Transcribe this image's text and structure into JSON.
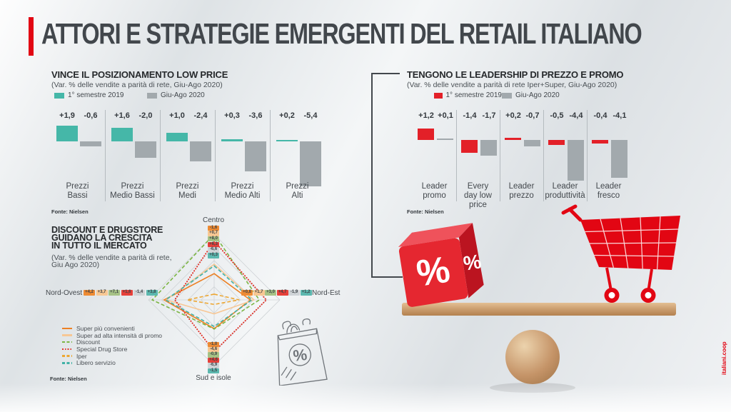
{
  "page": {
    "title": "ATTORI E STRATEGIE EMERGENTI DEL RETAIL ITALIANO",
    "credit": "italiani.coop"
  },
  "illustration": {
    "percent": "%"
  },
  "charts": [
    {
      "id": "low_price",
      "type": "bar",
      "title": "VINCE IL POSIZIONAMENTO LOW PRICE",
      "subtitle": "(Var. % delle vendite a parità di rete, Giu-Ago 2020)",
      "legend": [
        {
          "label": "1° semestre 2019",
          "color": "#45b7a8"
        },
        {
          "label": "Giu-Ago 2020",
          "color": "#a2a9ad"
        }
      ],
      "groups": [
        {
          "category": [
            "Prezzi",
            "Bassi"
          ],
          "labels": [
            "+1,9",
            "-0,6"
          ],
          "values": [
            1.9,
            -0.6
          ]
        },
        {
          "category": [
            "Prezzi",
            "Medio Bassi"
          ],
          "labels": [
            "+1,6",
            "-2,0"
          ],
          "values": [
            1.6,
            -2.0
          ]
        },
        {
          "category": [
            "Prezzi",
            "Medi"
          ],
          "labels": [
            "+1,0",
            "-2,4"
          ],
          "values": [
            1.0,
            -2.4
          ]
        },
        {
          "category": [
            "Prezzi",
            "Medio Alti"
          ],
          "labels": [
            "+0,3",
            "-3,6"
          ],
          "values": [
            0.3,
            -3.6
          ]
        },
        {
          "category": [
            "Prezzi",
            "Alti"
          ],
          "labels": [
            "+0,2",
            "-5,4"
          ],
          "values": [
            0.2,
            -5.4
          ]
        }
      ],
      "source": "Fonte: Nielsen"
    },
    {
      "id": "leadership",
      "type": "bar",
      "title": "TENGONO LE LEADERSHIP DI PREZZO E PROMO",
      "subtitle": "(Var. % delle vendite a parità di rete Iper+Super, Giu-Ago 2020)",
      "legend": [
        {
          "label": "1° semestre 2019",
          "color": "#e32028"
        },
        {
          "label": "Giu-Ago 2020",
          "color": "#a2a9ad"
        }
      ],
      "groups": [
        {
          "category": [
            "Leader",
            "promo"
          ],
          "labels": [
            "+1,2",
            "+0,1"
          ],
          "values": [
            1.2,
            0.1
          ]
        },
        {
          "category": [
            "Every",
            "day low price"
          ],
          "labels": [
            "-1,4",
            "-1,7"
          ],
          "values": [
            -1.4,
            -1.7
          ]
        },
        {
          "category": [
            "Leader",
            "prezzo"
          ],
          "labels": [
            "+0,2",
            "-0,7"
          ],
          "values": [
            0.2,
            -0.7
          ]
        },
        {
          "category": [
            "Leader",
            "produttività"
          ],
          "labels": [
            "-0,5",
            "-4,4"
          ],
          "values": [
            -0.5,
            -4.4
          ]
        },
        {
          "category": [
            "Leader",
            "fresco"
          ],
          "labels": [
            "-0,4",
            "-4,1"
          ],
          "values": [
            -0.4,
            -4.1
          ]
        }
      ],
      "source": "Fonte: Nielsen"
    },
    {
      "id": "radar_aree",
      "type": "radar",
      "title_lines": [
        "DISCOUNT E DRUGSTORE",
        "GUIDANO LA CRESCITA",
        "IN TUTTO IL MERCATO"
      ],
      "subtitle_lines": [
        "(Var. % delle vendite a parità di rete,",
        "Giu Ago 2020)"
      ],
      "axes": [
        "Centro",
        "Nord-Est",
        "Sud e isole",
        "Nord-Ovest"
      ],
      "scale": {
        "min": -8,
        "max": 8
      },
      "series": [
        {
          "name": "Super più convenienti",
          "line_color": "#ec8125",
          "dash": "solid",
          "box_color": "#ee8b33",
          "values": [
            -1.6,
            0.8,
            -1.0,
            4.2
          ],
          "labels": [
            "-1,6",
            "+0,8",
            "-1,0",
            "+4,2"
          ]
        },
        {
          "name": "Super ad alta intensità di promo",
          "line_color": "#f7c795",
          "dash": "solid",
          "box_color": "#f8c893",
          "values": [
            0.7,
            1.7,
            -4.6,
            3.7
          ],
          "labels": [
            "+0,7",
            "+1,7",
            "-4,6",
            "+3,7"
          ]
        },
        {
          "name": "Discount",
          "line_color": "#7cb544",
          "dash": "dashed",
          "box_color": "#a6c285",
          "values": [
            8.0,
            3.0,
            -0.9,
            7.1
          ],
          "labels": [
            "+8,0",
            "+3,0",
            "-0,9",
            "+7,1"
          ]
        },
        {
          "name": "Special Drug Store",
          "line_color": "#e2342b",
          "dash": "dotted",
          "box_color": "#e6403a",
          "values": [
            6.3,
            4.7,
            4.6,
            1.6
          ],
          "labels": [
            "+6,3",
            "+4,7",
            "+4,6",
            "+1,6"
          ]
        },
        {
          "name": "Iper",
          "line_color": "#eda733",
          "dash": "dashed",
          "box_color": "#cfd4d7",
          "values": [
            -6.6,
            -1.9,
            -6.9,
            -1.4
          ],
          "labels": [
            "-6,6",
            "-1,9",
            "-6,9",
            "-1,4"
          ]
        },
        {
          "name": "Libero servizio",
          "line_color": "#41b2a7",
          "dash": "dashed",
          "box_color": "#5cb8af",
          "values": [
            0.3,
            1.2,
            -1.5,
            3.8
          ],
          "labels": [
            "+0,3",
            "+1,2",
            "-1,5",
            "+3,8"
          ]
        }
      ],
      "source": "Fonte: Nielsen"
    }
  ]
}
